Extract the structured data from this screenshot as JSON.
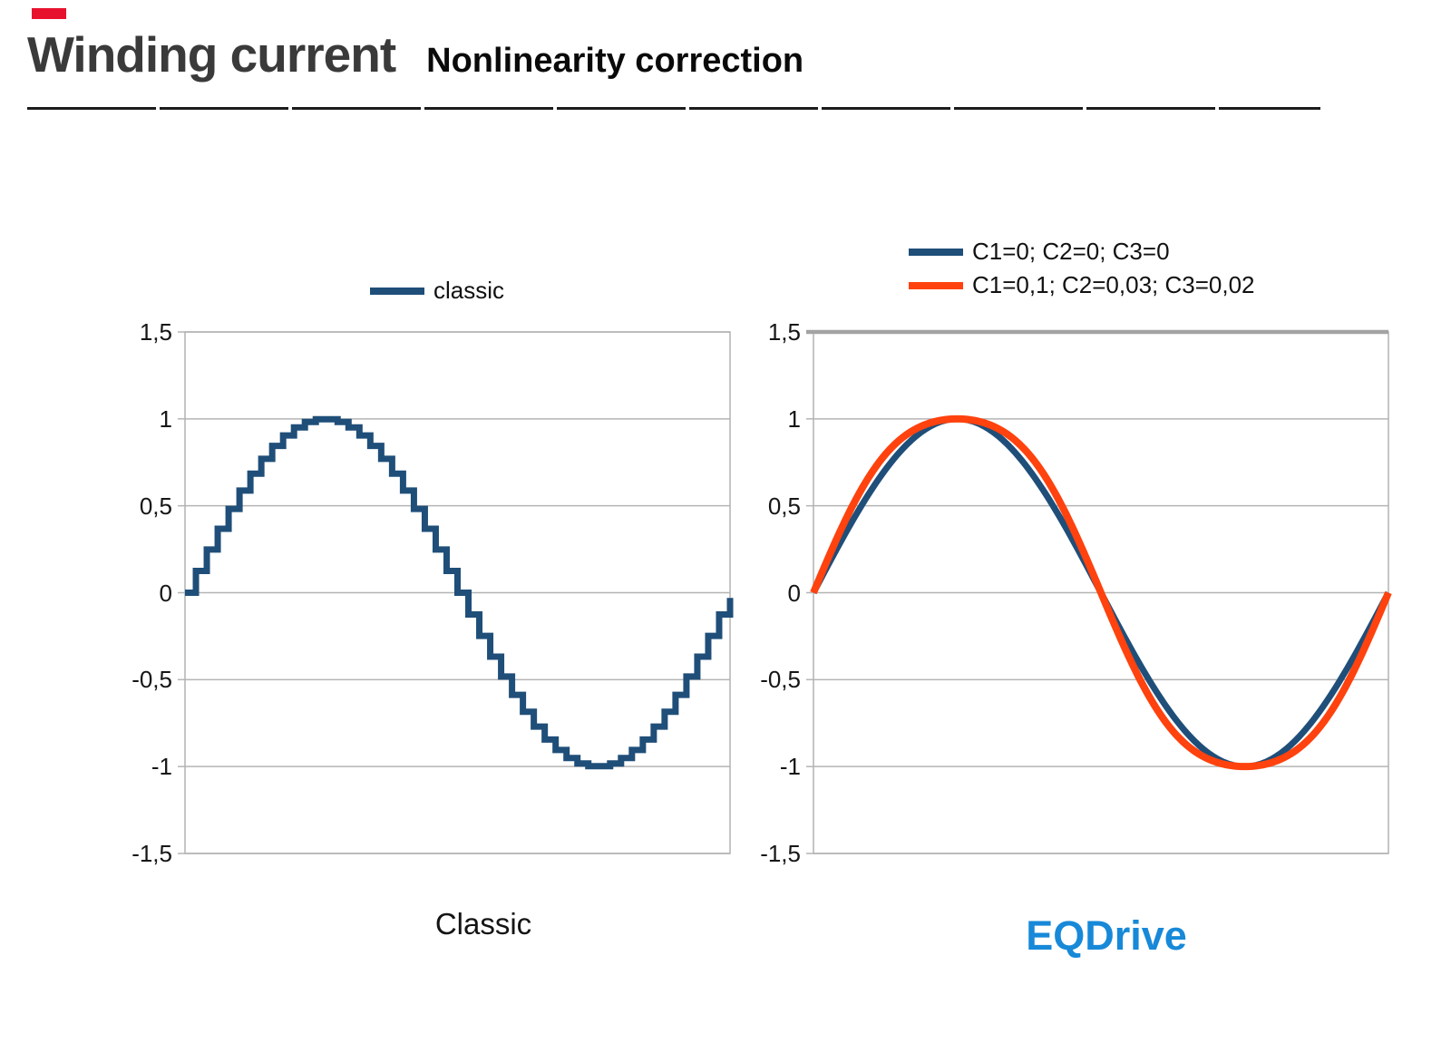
{
  "slide": {
    "title": "Winding current",
    "subtitle": "Nonlinearity correction"
  },
  "colors": {
    "navy_curve": "#1f4e79",
    "orange_curve": "#ff420e",
    "grid": "#b4b4b4",
    "plot_border": "#b2b2b2",
    "thick_top_border": "#a3a3a3",
    "eqdrive_blue": "#1789d8",
    "red_mark": "#e8112d",
    "title_gray": "#3a3a3a"
  },
  "chart_data": [
    {
      "id": "classic-chart",
      "type": "line",
      "caption": "Classic",
      "legend": [
        {
          "label": "classic",
          "color": "#1f4e79"
        }
      ],
      "x_range_deg": [
        0,
        360
      ],
      "ylim": [
        -1.5,
        1.5
      ],
      "y_tick_labels": [
        "1,5",
        "1",
        "0,5",
        "0",
        "-0,5",
        "-1",
        "-1,5"
      ],
      "y_tick_values": [
        1.5,
        1.0,
        0.5,
        0.0,
        -0.5,
        -1.0,
        -1.5
      ],
      "grid": "horizontal",
      "legend_position": "top",
      "series": [
        {
          "name": "classic",
          "color": "#1f4e79",
          "style": "staircase",
          "steps_per_period": 50,
          "shape": {
            "gain": 1.0,
            "cubic": 0.0
          },
          "x_deg15": [
            0,
            15,
            30,
            45,
            60,
            75,
            90,
            105,
            120,
            135,
            150,
            165,
            180,
            195,
            210,
            225,
            240,
            255,
            270,
            285,
            300,
            315,
            330,
            345,
            360
          ],
          "values_deg15": [
            0,
            0.259,
            0.5,
            0.707,
            0.866,
            0.966,
            1,
            0.966,
            0.866,
            0.707,
            0.5,
            0.259,
            0,
            -0.259,
            -0.5,
            -0.707,
            -0.866,
            -0.966,
            -1,
            -0.966,
            -0.866,
            -0.707,
            -0.5,
            -0.259,
            0
          ]
        }
      ]
    },
    {
      "id": "eqdrive-chart",
      "type": "line",
      "caption": "EQDrive",
      "legend": [
        {
          "label": "C1=0; C2=0; C3=0",
          "color": "#1f4e79"
        },
        {
          "label": "C1=0,1; C2=0,03; C3=0,02",
          "color": "#ff420e"
        }
      ],
      "x_range_deg": [
        0,
        360
      ],
      "ylim": [
        -1.5,
        1.5
      ],
      "y_tick_labels": [
        "1,5",
        "1",
        "0,5",
        "0",
        "-0,5",
        "-1",
        "-1,5"
      ],
      "y_tick_values": [
        1.5,
        1.0,
        0.5,
        0.0,
        -0.5,
        -1.0,
        -1.5
      ],
      "grid": "horizontal",
      "legend_position": "top",
      "series": [
        {
          "name": "C1=0; C2=0; C3=0",
          "color": "#1f4e79",
          "style": "smooth",
          "shape": {
            "gain": 1.0,
            "cubic": 0.0
          },
          "x_deg15": [
            0,
            15,
            30,
            45,
            60,
            75,
            90,
            105,
            120,
            135,
            150,
            165,
            180,
            195,
            210,
            225,
            240,
            255,
            270,
            285,
            300,
            315,
            330,
            345,
            360
          ],
          "values_deg15": [
            0,
            0.259,
            0.5,
            0.707,
            0.866,
            0.966,
            1,
            0.966,
            0.866,
            0.707,
            0.5,
            0.259,
            0,
            -0.259,
            -0.5,
            -0.707,
            -0.866,
            -0.966,
            -1,
            -0.966,
            -0.866,
            -0.707,
            -0.5,
            -0.259,
            0
          ]
        },
        {
          "name": "C1=0,1; C2=0,03; C3=0,02",
          "color": "#ff420e",
          "style": "smooth",
          "shape": {
            "gain": 1.25,
            "cubic": 0.25
          },
          "x_deg15": [
            0,
            15,
            30,
            45,
            60,
            75,
            90,
            105,
            120,
            135,
            150,
            165,
            180,
            195,
            210,
            225,
            240,
            255,
            270,
            285,
            300,
            315,
            330,
            345,
            360
          ],
          "values_deg15": [
            0,
            0.319,
            0.594,
            0.795,
            0.92,
            0.982,
            1,
            0.982,
            0.92,
            0.795,
            0.594,
            0.319,
            0,
            -0.319,
            -0.594,
            -0.795,
            -0.92,
            -0.982,
            -1,
            -0.982,
            -0.92,
            -0.795,
            -0.594,
            -0.319,
            0
          ]
        }
      ]
    }
  ]
}
